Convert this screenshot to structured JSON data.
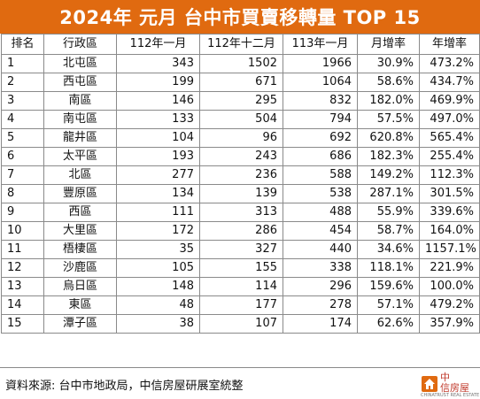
{
  "title": "2024年 元月 台中市買賣移轉量 TOP 15",
  "colors": {
    "title_bg": "#e06a10",
    "title_text": "#ffffff",
    "logo_red": "#c0392b",
    "logo_orange": "#e06a10"
  },
  "table": {
    "headers": [
      "排名",
      "行政區",
      "112年一月",
      "112年十二月",
      "113年一月",
      "月增率",
      "年增率"
    ],
    "rows": [
      [
        "1",
        "北屯區",
        "343",
        "1502",
        "1966",
        "30.9%",
        "473.2%"
      ],
      [
        "2",
        "西屯區",
        "199",
        "671",
        "1064",
        "58.6%",
        "434.7%"
      ],
      [
        "3",
        "南區",
        "146",
        "295",
        "832",
        "182.0%",
        "469.9%"
      ],
      [
        "4",
        "南屯區",
        "133",
        "504",
        "794",
        "57.5%",
        "497.0%"
      ],
      [
        "5",
        "龍井區",
        "104",
        "96",
        "692",
        "620.8%",
        "565.4%"
      ],
      [
        "6",
        "太平區",
        "193",
        "243",
        "686",
        "182.3%",
        "255.4%"
      ],
      [
        "7",
        "北區",
        "277",
        "236",
        "588",
        "149.2%",
        "112.3%"
      ],
      [
        "8",
        "豐原區",
        "134",
        "139",
        "538",
        "287.1%",
        "301.5%"
      ],
      [
        "9",
        "西區",
        "111",
        "313",
        "488",
        "55.9%",
        "339.6%"
      ],
      [
        "10",
        "大里區",
        "172",
        "286",
        "454",
        "58.7%",
        "164.0%"
      ],
      [
        "11",
        "梧棲區",
        "35",
        "327",
        "440",
        "34.6%",
        "1157.1%"
      ],
      [
        "12",
        "沙鹿區",
        "105",
        "155",
        "338",
        "118.1%",
        "221.9%"
      ],
      [
        "13",
        "烏日區",
        "148",
        "114",
        "296",
        "159.6%",
        "100.0%"
      ],
      [
        "14",
        "東區",
        "48",
        "177",
        "278",
        "57.1%",
        "479.2%"
      ],
      [
        "15",
        "潭子區",
        "38",
        "107",
        "174",
        "62.6%",
        "357.9%"
      ]
    ]
  },
  "footer": {
    "source": "資料來源: 台中市地政局，中信房屋研展室統整",
    "logo_icon": "house-logo-icon",
    "logo_line1": "中",
    "logo_line2": "信房屋",
    "logo_sub": "CHINATRUST REAL ESTATE"
  }
}
